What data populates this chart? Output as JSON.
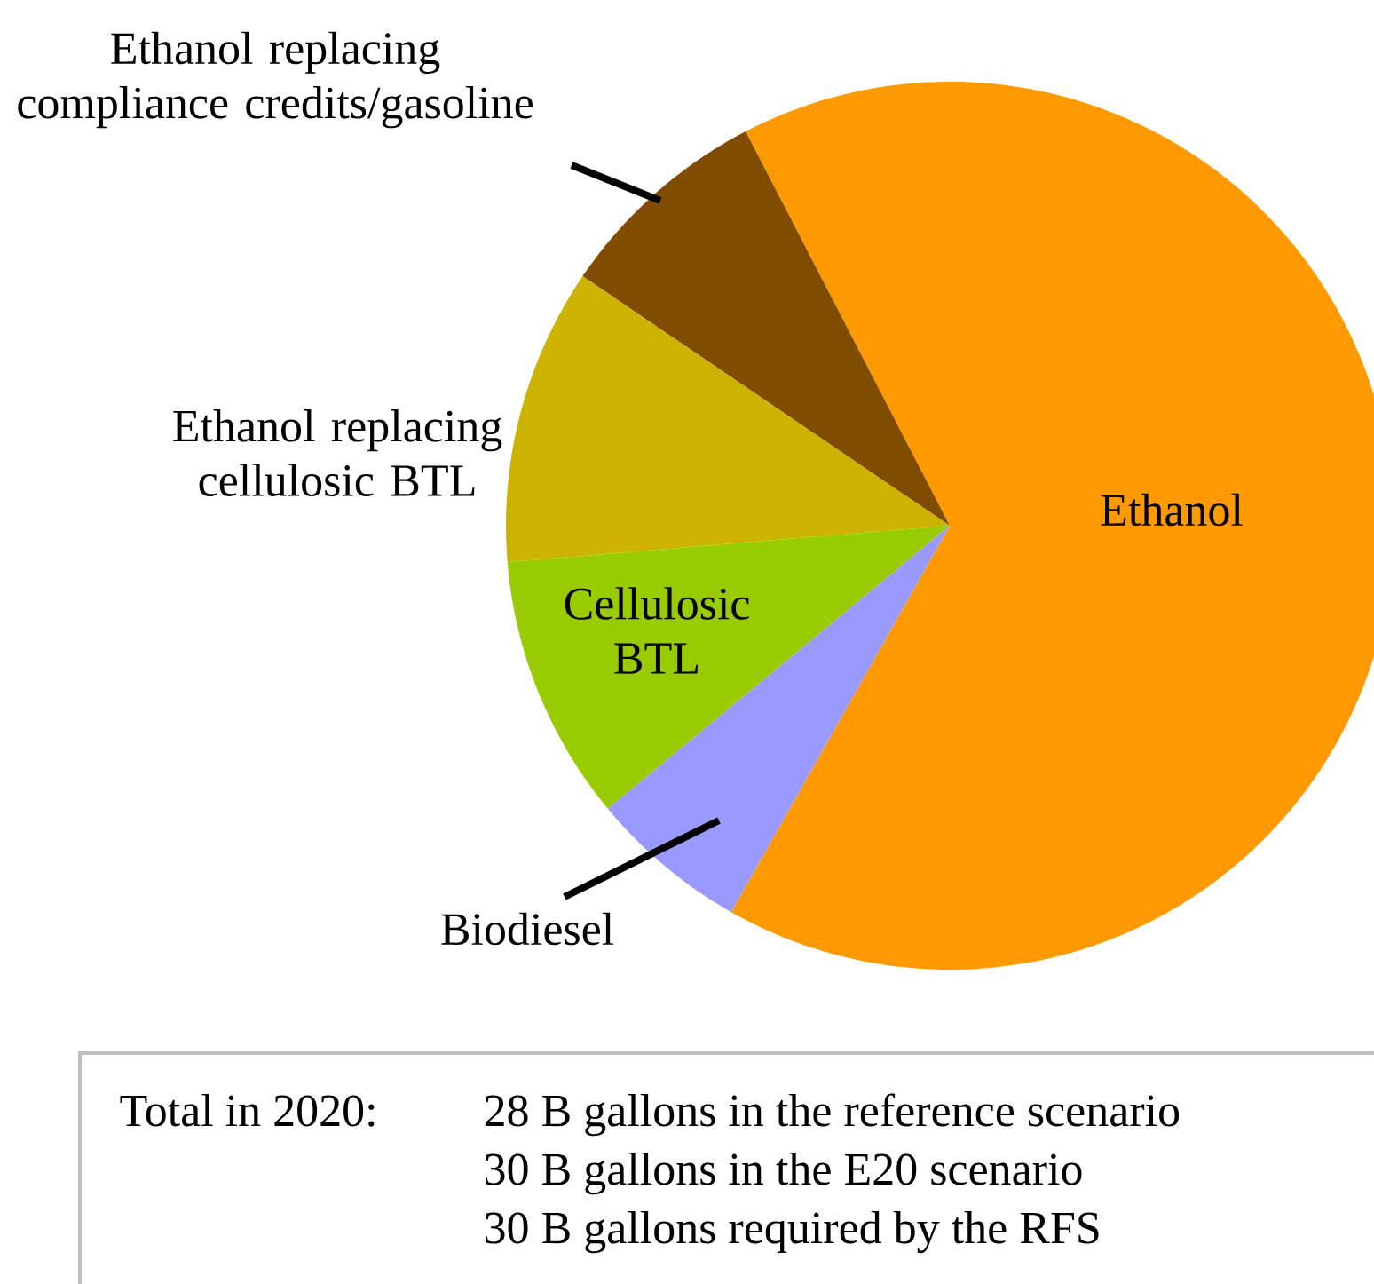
{
  "chart_data": {
    "type": "pie",
    "categories": [
      "Ethanol",
      "Ethanol replacing compliance credits/gasoline",
      "Ethanol replacing cellulosic BTL",
      "Cellulosic BTL",
      "Biodiesel"
    ],
    "values": [
      65.8,
      7.9,
      10.8,
      9.7,
      5.8
    ],
    "colors": [
      "#ff9900",
      "#804d00",
      "#ccb300",
      "#99cc00",
      "#9999ff"
    ],
    "annotations": [
      "Total in 2020:",
      "28 B gallons in the reference scenario",
      "30 B gallons in the E20 scenario",
      "30 B gallons required by the RFS"
    ]
  }
}
